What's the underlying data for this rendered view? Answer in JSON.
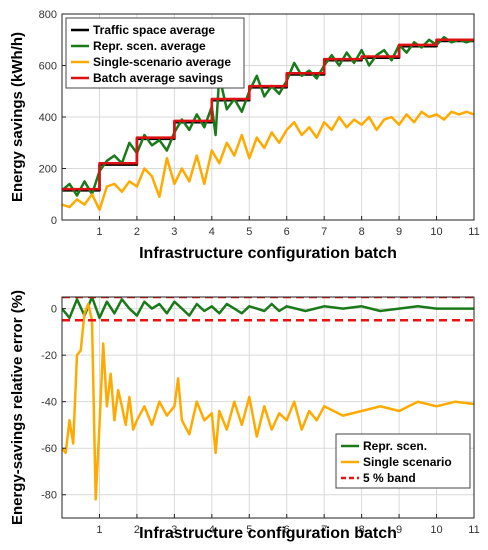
{
  "chart_data": [
    {
      "type": "line",
      "title": "",
      "xlabel": "Infrastructure configuration batch",
      "ylabel": "Energy savings (kWh/h)",
      "xlim": [
        0,
        11
      ],
      "ylim": [
        0,
        800
      ],
      "xticks": [
        1,
        2,
        3,
        4,
        5,
        6,
        7,
        8,
        9,
        10,
        11
      ],
      "yticks": [
        0,
        200,
        400,
        600,
        800
      ],
      "grid": true,
      "legend_position": "top-left",
      "series": [
        {
          "name": "Traffic space average",
          "color": "#000000",
          "x": [
            0,
            1,
            2,
            3,
            4,
            5,
            6,
            7,
            8,
            9,
            10,
            11
          ],
          "y": [
            115,
            215,
            315,
            380,
            465,
            515,
            565,
            620,
            630,
            675,
            695,
            695
          ]
        },
        {
          "name": "Repr. scen. average",
          "color": "#1a7a1a",
          "x": [
            0,
            0.2,
            0.4,
            0.6,
            0.8,
            1,
            1.2,
            1.4,
            1.6,
            1.8,
            2,
            2.2,
            2.4,
            2.6,
            2.8,
            3,
            3.2,
            3.4,
            3.6,
            3.8,
            4,
            4.1,
            4.2,
            4.4,
            4.6,
            4.8,
            5,
            5.2,
            5.4,
            5.6,
            5.8,
            6,
            6.2,
            6.4,
            6.6,
            6.8,
            7,
            7.2,
            7.4,
            7.6,
            7.8,
            8,
            8.2,
            8.4,
            8.6,
            8.8,
            9,
            9.2,
            9.4,
            9.6,
            9.8,
            10,
            10.2,
            10.4,
            10.6,
            10.8,
            11
          ],
          "y": [
            115,
            140,
            95,
            150,
            100,
            190,
            230,
            250,
            220,
            300,
            260,
            330,
            290,
            310,
            270,
            340,
            390,
            350,
            410,
            360,
            440,
            330,
            560,
            430,
            470,
            420,
            500,
            560,
            480,
            520,
            490,
            540,
            610,
            560,
            580,
            550,
            600,
            640,
            600,
            650,
            610,
            660,
            600,
            640,
            660,
            620,
            680,
            650,
            690,
            670,
            700,
            680,
            710,
            690,
            700,
            690,
            700
          ]
        },
        {
          "name": "Single-scenario average",
          "color": "#ffaa00",
          "x": [
            0,
            0.2,
            0.4,
            0.6,
            0.8,
            1,
            1.2,
            1.4,
            1.6,
            1.8,
            2,
            2.2,
            2.4,
            2.6,
            2.8,
            3,
            3.2,
            3.4,
            3.6,
            3.8,
            4,
            4.2,
            4.4,
            4.6,
            4.8,
            5,
            5.2,
            5.4,
            5.6,
            5.8,
            6,
            6.2,
            6.4,
            6.6,
            6.8,
            7,
            7.2,
            7.4,
            7.6,
            7.8,
            8,
            8.2,
            8.4,
            8.6,
            8.8,
            9,
            9.2,
            9.4,
            9.6,
            9.8,
            10,
            10.2,
            10.4,
            10.6,
            10.8,
            11
          ],
          "y": [
            60,
            50,
            80,
            60,
            100,
            40,
            130,
            140,
            110,
            150,
            130,
            200,
            170,
            90,
            240,
            140,
            200,
            150,
            250,
            140,
            270,
            220,
            300,
            250,
            330,
            240,
            320,
            280,
            340,
            300,
            350,
            380,
            330,
            360,
            320,
            380,
            350,
            400,
            360,
            390,
            370,
            400,
            350,
            390,
            400,
            370,
            410,
            380,
            420,
            400,
            410,
            390,
            420,
            410,
            420,
            410
          ]
        },
        {
          "name": "Batch average savings",
          "color": "#dd1111",
          "x": [
            0,
            1,
            2,
            3,
            4,
            5,
            6,
            7,
            8,
            9,
            10,
            11
          ],
          "y": [
            120,
            220,
            320,
            385,
            470,
            520,
            570,
            625,
            635,
            680,
            700,
            700
          ]
        }
      ]
    },
    {
      "type": "line",
      "title": "",
      "xlabel": "Infrastructure configuration batch",
      "ylabel": "Energy-savings relative error (%)",
      "xlim": [
        0,
        11
      ],
      "ylim": [
        -90,
        5
      ],
      "xticks": [
        1,
        2,
        3,
        4,
        5,
        6,
        7,
        8,
        9,
        10,
        11
      ],
      "yticks": [
        0,
        -20,
        -40,
        -60,
        -80
      ],
      "grid": true,
      "legend_position": "bottom-right",
      "series": [
        {
          "name": "Repr. scen.",
          "color": "#1a7a1a",
          "x": [
            0,
            0.2,
            0.4,
            0.6,
            0.8,
            1,
            1.2,
            1.4,
            1.6,
            1.8,
            2,
            2.2,
            2.4,
            2.6,
            2.8,
            3,
            3.2,
            3.4,
            3.6,
            3.8,
            4,
            4.2,
            4.4,
            4.6,
            4.8,
            5,
            5.2,
            5.4,
            5.6,
            5.8,
            6,
            6.5,
            7,
            7.5,
            8,
            8.5,
            9,
            9.5,
            10,
            10.5,
            11
          ],
          "y": [
            0,
            -4,
            4,
            -3,
            5,
            -4,
            3,
            -2,
            4,
            0,
            -3,
            3,
            0,
            2,
            -2,
            3,
            0,
            -3,
            2,
            -1,
            1,
            -2,
            2,
            0,
            -2,
            1,
            0,
            -1,
            2,
            -1,
            1,
            -1,
            1,
            0,
            1,
            -1,
            0,
            1,
            0,
            0,
            0
          ]
        },
        {
          "name": "Single scenario",
          "color": "#ffaa00",
          "x": [
            0,
            0.1,
            0.2,
            0.3,
            0.4,
            0.5,
            0.6,
            0.7,
            0.8,
            0.9,
            1.0,
            1.1,
            1.2,
            1.3,
            1.4,
            1.5,
            1.6,
            1.7,
            1.8,
            1.9,
            2.0,
            2.2,
            2.4,
            2.6,
            2.8,
            3.0,
            3.1,
            3.2,
            3.4,
            3.6,
            3.8,
            4.0,
            4.1,
            4.2,
            4.4,
            4.6,
            4.8,
            5.0,
            5.2,
            5.4,
            5.6,
            5.8,
            6.0,
            6.2,
            6.4,
            6.6,
            6.8,
            7.0,
            7.5,
            8.0,
            8.5,
            9.0,
            9.5,
            10.0,
            10.5,
            11.0
          ],
          "y": [
            -60,
            -62,
            -48,
            -58,
            -20,
            -18,
            -2,
            2,
            -5,
            -82,
            -50,
            -15,
            -42,
            -28,
            -48,
            -35,
            -42,
            -50,
            -38,
            -52,
            -48,
            -42,
            -50,
            -40,
            -46,
            -42,
            -30,
            -48,
            -54,
            -40,
            -48,
            -45,
            -62,
            -44,
            -52,
            -40,
            -50,
            -38,
            -55,
            -42,
            -52,
            -45,
            -48,
            -40,
            -52,
            -44,
            -48,
            -42,
            -46,
            -44,
            -42,
            -44,
            -40,
            -42,
            -40,
            -41
          ]
        },
        {
          "name": "5 % band",
          "color": "#ee1111",
          "dashed": true,
          "bands": [
            5,
            -5
          ]
        }
      ]
    }
  ]
}
